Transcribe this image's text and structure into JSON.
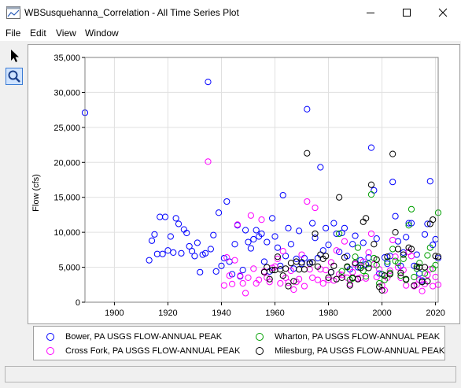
{
  "window": {
    "title": "WBSusquehanna_Correlation - All Time Series Plot"
  },
  "menu": [
    "File",
    "Edit",
    "View",
    "Window"
  ],
  "toolbar": {
    "tools": [
      "pointer-icon",
      "zoom-icon"
    ],
    "active": "zoom-icon"
  },
  "chart_data": {
    "type": "scatter",
    "ylabel": "Flow (cfs)",
    "xlabel": "",
    "xlim": [
      1889,
      2021
    ],
    "ylim": [
      0,
      35000
    ],
    "xticks": [
      1900,
      1920,
      1940,
      1960,
      1980,
      2000,
      2020
    ],
    "yticks": [
      0,
      5000,
      10000,
      15000,
      20000,
      25000,
      30000,
      35000
    ],
    "ytick_labels": [
      "0",
      "5,000",
      "10,000",
      "15,000",
      "20,000",
      "25,000",
      "30,000",
      "35,000"
    ],
    "grid": true,
    "legend_position": "bottom",
    "series": [
      {
        "name": "Bower, PA USGS FLOW-ANNUAL PEAK",
        "color": "#0000ff",
        "points": [
          [
            1889,
            27100
          ],
          [
            1913,
            6000
          ],
          [
            1914,
            8800
          ],
          [
            1915,
            9700
          ],
          [
            1916,
            6900
          ],
          [
            1917,
            12200
          ],
          [
            1918,
            6900
          ],
          [
            1919,
            12200
          ],
          [
            1920,
            7400
          ],
          [
            1921,
            9400
          ],
          [
            1922,
            7100
          ],
          [
            1923,
            12000
          ],
          [
            1924,
            11200
          ],
          [
            1925,
            7000
          ],
          [
            1926,
            10400
          ],
          [
            1927,
            9900
          ],
          [
            1928,
            8000
          ],
          [
            1929,
            7300
          ],
          [
            1930,
            6600
          ],
          [
            1931,
            8500
          ],
          [
            1932,
            4300
          ],
          [
            1933,
            6800
          ],
          [
            1934,
            7000
          ],
          [
            1935,
            31500
          ],
          [
            1936,
            7600
          ],
          [
            1937,
            9600
          ],
          [
            1938,
            4400
          ],
          [
            1939,
            12800
          ],
          [
            1940,
            5200
          ],
          [
            1941,
            6300
          ],
          [
            1942,
            14400
          ],
          [
            1943,
            5800
          ],
          [
            1944,
            4000
          ],
          [
            1945,
            8300
          ],
          [
            1946,
            11000
          ],
          [
            1947,
            3700
          ],
          [
            1948,
            4600
          ],
          [
            1949,
            10300
          ],
          [
            1950,
            8600
          ],
          [
            1951,
            7700
          ],
          [
            1952,
            9000
          ],
          [
            1953,
            10300
          ],
          [
            1954,
            9400
          ],
          [
            1955,
            9800
          ],
          [
            1956,
            5800
          ],
          [
            1957,
            8600
          ],
          [
            1958,
            4400
          ],
          [
            1959,
            12000
          ],
          [
            1960,
            9400
          ],
          [
            1961,
            7800
          ],
          [
            1962,
            5200
          ],
          [
            1963,
            15300
          ],
          [
            1964,
            6600
          ],
          [
            1965,
            10600
          ],
          [
            1966,
            8300
          ],
          [
            1967,
            4800
          ],
          [
            1968,
            6200
          ],
          [
            1969,
            10200
          ],
          [
            1970,
            5500
          ],
          [
            1971,
            6300
          ],
          [
            1972,
            27600
          ],
          [
            1973,
            5700
          ],
          [
            1974,
            11300
          ],
          [
            1975,
            9200
          ],
          [
            1976,
            6300
          ],
          [
            1977,
            19300
          ],
          [
            1978,
            7400
          ],
          [
            1979,
            10600
          ],
          [
            1980,
            8200
          ],
          [
            1981,
            4300
          ],
          [
            1982,
            11300
          ],
          [
            1983,
            9800
          ],
          [
            1984,
            7200
          ],
          [
            1985,
            9900
          ],
          [
            1986,
            10600
          ],
          [
            1987,
            6600
          ],
          [
            1988,
            4700
          ],
          [
            1989,
            8300
          ],
          [
            1990,
            9500
          ],
          [
            1991,
            5000
          ],
          [
            1992,
            6000
          ],
          [
            1993,
            8500
          ],
          [
            1994,
            5400
          ],
          [
            1995,
            6400
          ],
          [
            1996,
            22100
          ],
          [
            1997,
            16000
          ],
          [
            1998,
            9100
          ],
          [
            1999,
            4100
          ],
          [
            2000,
            4000
          ],
          [
            2001,
            6400
          ],
          [
            2002,
            5500
          ],
          [
            2003,
            6600
          ],
          [
            2004,
            17200
          ],
          [
            2005,
            12300
          ],
          [
            2006,
            8700
          ],
          [
            2007,
            5200
          ],
          [
            2008,
            7100
          ],
          [
            2009,
            9300
          ],
          [
            2010,
            11300
          ],
          [
            2011,
            11300
          ],
          [
            2012,
            5200
          ],
          [
            2013,
            6800
          ],
          [
            2014,
            4100
          ],
          [
            2015,
            3100
          ],
          [
            2016,
            9700
          ],
          [
            2017,
            11200
          ],
          [
            2018,
            17300
          ],
          [
            2019,
            8200
          ],
          [
            2020,
            9000
          ],
          [
            2021,
            6300
          ]
        ]
      },
      {
        "name": "Cross Fork, PA USGS FLOW-ANNUAL PEAK",
        "color": "#ff00ff",
        "points": [
          [
            1935,
            20100
          ],
          [
            1941,
            2400
          ],
          [
            1942,
            6400
          ],
          [
            1943,
            3800
          ],
          [
            1944,
            2600
          ],
          [
            1945,
            6000
          ],
          [
            1946,
            11100
          ],
          [
            1947,
            3800
          ],
          [
            1948,
            2700
          ],
          [
            1949,
            1300
          ],
          [
            1950,
            3500
          ],
          [
            1951,
            12400
          ],
          [
            1952,
            4800
          ],
          [
            1953,
            2700
          ],
          [
            1954,
            3200
          ],
          [
            1955,
            11800
          ],
          [
            1956,
            4400
          ],
          [
            1957,
            3500
          ],
          [
            1958,
            2900
          ],
          [
            1959,
            4900
          ],
          [
            1960,
            5100
          ],
          [
            1961,
            6200
          ],
          [
            1962,
            2700
          ],
          [
            1963,
            7300
          ],
          [
            1964,
            3500
          ],
          [
            1965,
            2800
          ],
          [
            1966,
            4500
          ],
          [
            1967,
            1800
          ],
          [
            1968,
            2900
          ],
          [
            1969,
            3300
          ],
          [
            1970,
            6800
          ],
          [
            1971,
            2300
          ],
          [
            1972,
            14400
          ],
          [
            1973,
            4700
          ],
          [
            1974,
            3500
          ],
          [
            1975,
            13500
          ],
          [
            1976,
            3200
          ],
          [
            1977,
            4700
          ],
          [
            1978,
            2700
          ],
          [
            1979,
            4600
          ],
          [
            1980,
            3200
          ],
          [
            1981,
            5700
          ],
          [
            1982,
            3100
          ],
          [
            1983,
            7400
          ],
          [
            1984,
            4000
          ],
          [
            1985,
            3900
          ],
          [
            1986,
            8700
          ],
          [
            1987,
            3500
          ],
          [
            1988,
            2600
          ],
          [
            1989,
            4300
          ],
          [
            1990,
            5400
          ],
          [
            1991,
            3400
          ],
          [
            1992,
            3500
          ],
          [
            1993,
            5800
          ],
          [
            1994,
            3400
          ],
          [
            1995,
            7100
          ],
          [
            1996,
            9800
          ],
          [
            1997,
            5400
          ],
          [
            1998,
            3600
          ],
          [
            1999,
            4700
          ],
          [
            2000,
            2400
          ],
          [
            2001,
            1700
          ],
          [
            2002,
            3500
          ],
          [
            2003,
            4500
          ],
          [
            2004,
            8900
          ],
          [
            2005,
            6500
          ],
          [
            2006,
            5000
          ],
          [
            2007,
            3500
          ],
          [
            2008,
            4600
          ],
          [
            2009,
            2400
          ],
          [
            2010,
            7200
          ],
          [
            2011,
            6600
          ],
          [
            2012,
            2300
          ],
          [
            2013,
            2500
          ],
          [
            2014,
            3200
          ],
          [
            2015,
            1600
          ],
          [
            2016,
            2600
          ],
          [
            2017,
            3900
          ],
          [
            2018,
            4700
          ],
          [
            2019,
            2300
          ],
          [
            2020,
            3600
          ],
          [
            2021,
            2500
          ]
        ]
      },
      {
        "name": "Wharton, PA USGS FLOW-ANNUAL PEAK",
        "color": "#00a000",
        "points": [
          [
            1984,
            9800
          ],
          [
            1985,
            4400
          ],
          [
            1987,
            5000
          ],
          [
            1988,
            3200
          ],
          [
            1989,
            3400
          ],
          [
            1990,
            6500
          ],
          [
            1991,
            7800
          ],
          [
            1992,
            5300
          ],
          [
            1993,
            4500
          ],
          [
            1994,
            3700
          ],
          [
            1995,
            5500
          ],
          [
            1996,
            15400
          ],
          [
            1997,
            6300
          ],
          [
            1998,
            5300
          ],
          [
            1999,
            2700
          ],
          [
            2000,
            4000
          ],
          [
            2001,
            3200
          ],
          [
            2002,
            5800
          ],
          [
            2003,
            4200
          ],
          [
            2004,
            7600
          ],
          [
            2005,
            5900
          ],
          [
            2006,
            5600
          ],
          [
            2007,
            3800
          ],
          [
            2008,
            6200
          ],
          [
            2009,
            3200
          ],
          [
            2010,
            11000
          ],
          [
            2011,
            13300
          ],
          [
            2012,
            3600
          ],
          [
            2013,
            4800
          ],
          [
            2014,
            5600
          ],
          [
            2015,
            2900
          ],
          [
            2016,
            4100
          ],
          [
            2017,
            6700
          ],
          [
            2018,
            7800
          ],
          [
            2019,
            4800
          ],
          [
            2020,
            5300
          ],
          [
            2021,
            12800
          ]
        ]
      },
      {
        "name": "Milesburg, PA USGS FLOW-ANNUAL PEAK",
        "color": "#000000",
        "points": [
          [
            1956,
            4300
          ],
          [
            1957,
            5000
          ],
          [
            1958,
            3300
          ],
          [
            1959,
            4600
          ],
          [
            1960,
            4600
          ],
          [
            1961,
            6500
          ],
          [
            1962,
            4700
          ],
          [
            1963,
            3800
          ],
          [
            1964,
            4800
          ],
          [
            1965,
            2300
          ],
          [
            1966,
            5600
          ],
          [
            1967,
            3000
          ],
          [
            1968,
            5800
          ],
          [
            1969,
            4700
          ],
          [
            1970,
            5700
          ],
          [
            1971,
            4700
          ],
          [
            1972,
            21300
          ],
          [
            1973,
            5500
          ],
          [
            1974,
            5700
          ],
          [
            1975,
            9800
          ],
          [
            1976,
            5100
          ],
          [
            1977,
            6800
          ],
          [
            1978,
            6200
          ],
          [
            1979,
            6600
          ],
          [
            1980,
            3500
          ],
          [
            1981,
            4300
          ],
          [
            1982,
            5200
          ],
          [
            1983,
            3300
          ],
          [
            1984,
            15000
          ],
          [
            1985,
            3500
          ],
          [
            1986,
            6400
          ],
          [
            1987,
            5100
          ],
          [
            1988,
            2400
          ],
          [
            1989,
            3500
          ],
          [
            1990,
            5600
          ],
          [
            1991,
            3300
          ],
          [
            1992,
            4900
          ],
          [
            1993,
            11500
          ],
          [
            1994,
            12000
          ],
          [
            1995,
            4900
          ],
          [
            1996,
            16800
          ],
          [
            1997,
            8300
          ],
          [
            1998,
            6100
          ],
          [
            1999,
            2200
          ],
          [
            2000,
            1700
          ],
          [
            2001,
            3800
          ],
          [
            2002,
            6500
          ],
          [
            2003,
            4000
          ],
          [
            2004,
            21200
          ],
          [
            2005,
            10000
          ],
          [
            2006,
            7600
          ],
          [
            2007,
            4200
          ],
          [
            2008,
            6800
          ],
          [
            2009,
            3300
          ],
          [
            2010,
            7800
          ],
          [
            2011,
            7600
          ],
          [
            2012,
            2400
          ],
          [
            2013,
            5100
          ],
          [
            2014,
            5000
          ],
          [
            2015,
            2900
          ],
          [
            2016,
            5000
          ],
          [
            2017,
            3000
          ],
          [
            2018,
            11200
          ],
          [
            2019,
            11800
          ],
          [
            2020,
            6600
          ],
          [
            2021,
            6500
          ]
        ]
      }
    ]
  }
}
